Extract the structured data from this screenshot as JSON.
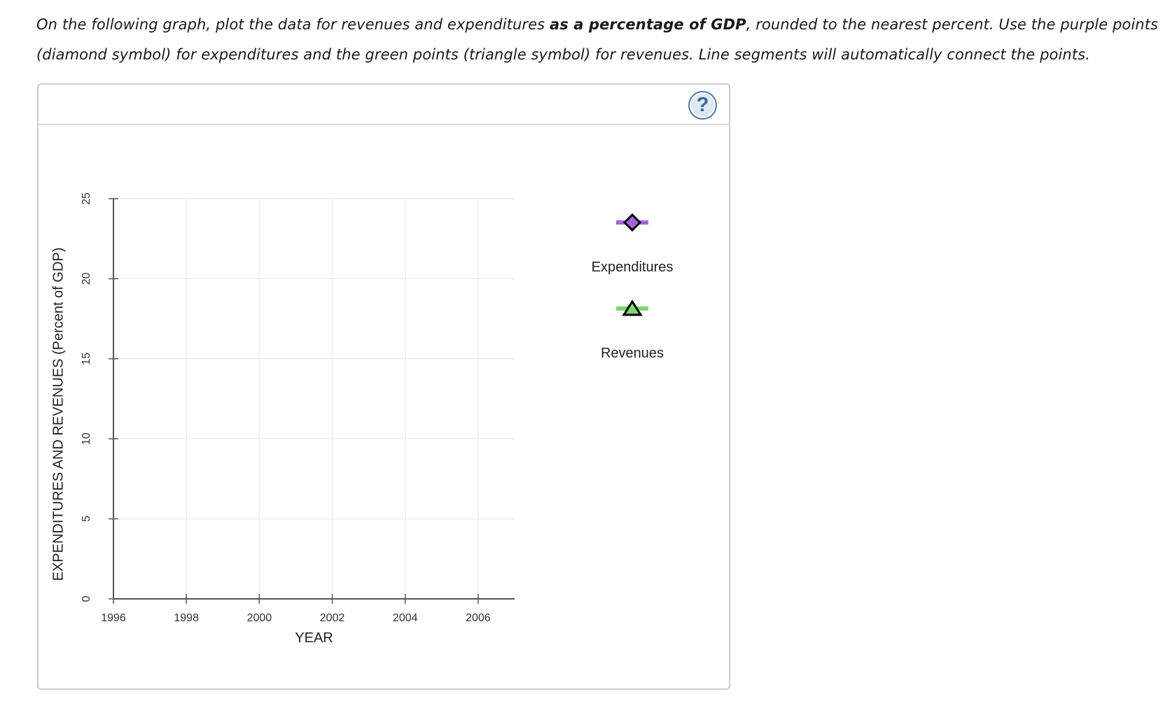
{
  "instructions": {
    "line1_prefix": "On the following graph, plot the data for revenues and expenditures ",
    "line1_bold": "as a percentage of GDP",
    "line1_suffix": ", rounded to the nearest percent. Use the purple points",
    "line2": "(diamond symbol) for expenditures and the green points (triangle symbol) for revenues. Line segments will automatically connect the points."
  },
  "help_button": {
    "label": "?",
    "icon": "help-icon"
  },
  "colors": {
    "expenditures": "#a066e0",
    "revenues": "#7fd66f",
    "axis": "#555555",
    "grid": "#eeeeee"
  },
  "chart_data": {
    "type": "line",
    "title": "",
    "xlabel": "YEAR",
    "ylabel": "EXPENDITURES AND REVENUES (Percent of GDP)",
    "xlim": [
      1996,
      2007
    ],
    "ylim": [
      0,
      25
    ],
    "x_ticks": [
      1996,
      1998,
      2000,
      2002,
      2004,
      2006
    ],
    "x_tick_labels": [
      "1996",
      "1998",
      "2000",
      "2002",
      "2004",
      "2006"
    ],
    "y_ticks": [
      0,
      5,
      10,
      15,
      20,
      25
    ],
    "y_tick_labels": [
      "0",
      "5",
      "10",
      "15",
      "20",
      "25"
    ],
    "grid": true,
    "series": [
      {
        "name": "Expenditures",
        "marker": "diamond",
        "color": "#a066e0",
        "values": []
      },
      {
        "name": "Revenues",
        "marker": "triangle",
        "color": "#7fd66f",
        "values": []
      }
    ]
  }
}
